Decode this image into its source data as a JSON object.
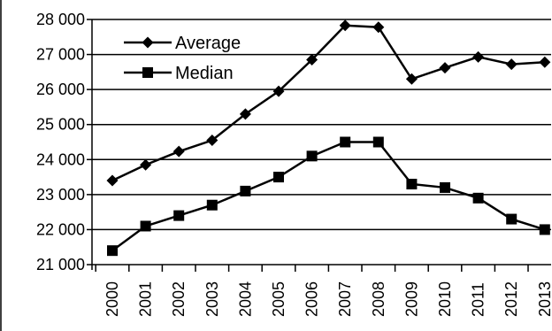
{
  "chart_data": {
    "type": "line",
    "title": "",
    "xlabel": "",
    "ylabel": "",
    "x": [
      "2000",
      "2001",
      "2002",
      "2003",
      "2004",
      "2005",
      "2006",
      "2007",
      "2008",
      "2009",
      "2010",
      "2011",
      "2012",
      "2013"
    ],
    "ylim": [
      21000,
      28000
    ],
    "yticks": [
      21000,
      22000,
      23000,
      24000,
      25000,
      26000,
      27000,
      28000
    ],
    "ytick_labels": [
      "21 000",
      "22 000",
      "23 000",
      "24 000",
      "25 000",
      "26 000",
      "27 000",
      "28 000"
    ],
    "grid": "horizontal",
    "legend_position": "top-left",
    "series": [
      {
        "name": "Average",
        "marker": "diamond",
        "color": "#000000",
        "values": [
          23400,
          23850,
          24230,
          24550,
          25300,
          25950,
          26850,
          27830,
          27780,
          26300,
          26620,
          26930,
          26720,
          26780
        ]
      },
      {
        "name": "Median",
        "marker": "square",
        "color": "#000000",
        "values": [
          21400,
          22100,
          22400,
          22700,
          23100,
          23500,
          24100,
          24500,
          24500,
          23300,
          23200,
          22900,
          22300,
          22000
        ]
      }
    ]
  }
}
